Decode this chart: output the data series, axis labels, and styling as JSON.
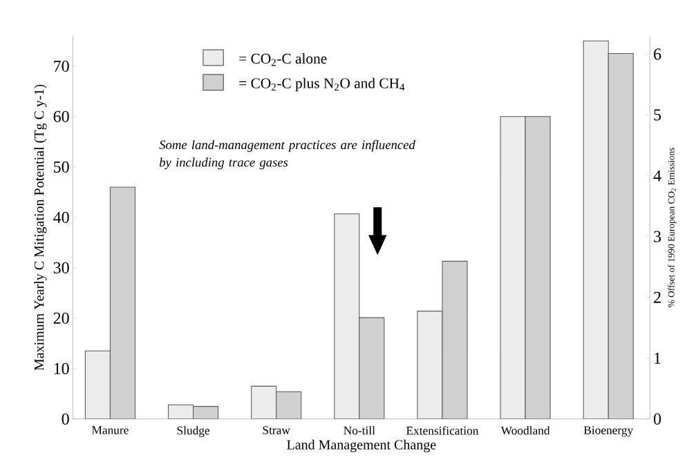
{
  "chart_data": {
    "type": "bar",
    "xlabel": "Land Management Change",
    "ylabel": "Maximum Yearly C Mitigation Potential (Tg C y-1)",
    "y2label": "% Offset of 1990 European CO$_{2}$ Emissions",
    "categories": [
      "Manure",
      "Sludge",
      "Straw",
      "No-till",
      "Extensification",
      "Woodland",
      "Bioenergy"
    ],
    "series": [
      {
        "name": "= CO$_{2}$-C alone",
        "color": "#ececec",
        "values": [
          13.5,
          2.8,
          6.5,
          40.7,
          21.4,
          60,
          75
        ]
      },
      {
        "name": "= CO$_{2}$-C plus N$_{2}$O and CH$_{4}$",
        "color": "#d0d0d0",
        "values": [
          46,
          2.5,
          5.4,
          20.1,
          31.3,
          60,
          72.5
        ]
      }
    ],
    "ylim": [
      0,
      76
    ],
    "yticks": [
      0,
      10,
      20,
      30,
      40,
      50,
      60,
      70
    ],
    "y2lim": [
      0,
      6.3
    ],
    "y2ticks": [
      0,
      1,
      2,
      3,
      4,
      5,
      6
    ],
    "annotations": [
      "*Some land-management practices are influenced by including trace gases*"
    ],
    "legend": "top left",
    "grid": false
  }
}
